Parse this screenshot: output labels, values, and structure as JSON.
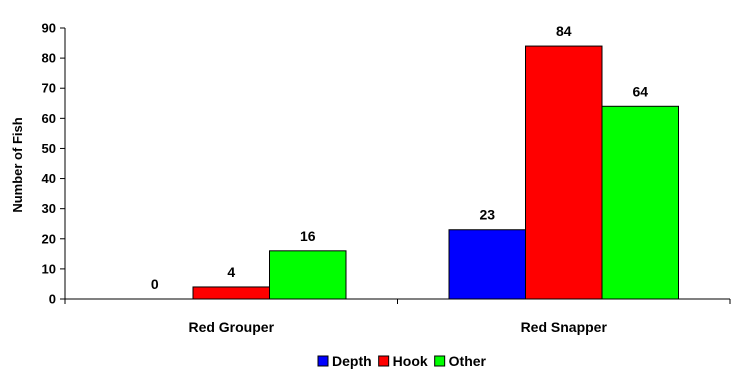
{
  "chart_data": {
    "type": "bar",
    "categories": [
      "Red Grouper",
      "Red Snapper"
    ],
    "series": [
      {
        "name": "Depth",
        "values": [
          0,
          23
        ],
        "color": "#0000ff"
      },
      {
        "name": "Hook",
        "values": [
          4,
          84
        ],
        "color": "#ff0000"
      },
      {
        "name": "Other",
        "values": [
          16,
          64
        ],
        "color": "#00ff00"
      }
    ],
    "xlabel": "",
    "ylabel": "Number of Fish",
    "ylim": [
      0,
      90
    ],
    "yticks": [
      0,
      10,
      20,
      30,
      40,
      50,
      60,
      70,
      80,
      90
    ],
    "grid": false,
    "legend": "bottom"
  }
}
